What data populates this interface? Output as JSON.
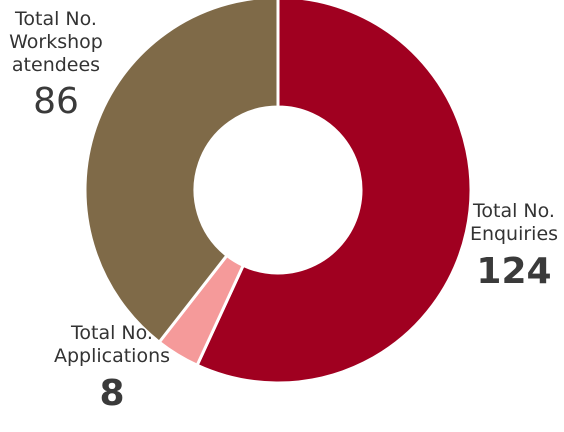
{
  "chart_data": {
    "type": "pie",
    "donut": true,
    "slices": [
      {
        "label": "Total No.\nEnquiries",
        "value": 124,
        "color": "#a00020"
      },
      {
        "label": "Total No.\nApplications",
        "value": 8,
        "color": "#f59a9a"
      },
      {
        "label": "Total No.\nWorkshop\natendees",
        "value": 86,
        "color": "#7f6a48"
      }
    ],
    "start_angle_deg": 0,
    "direction": "clockwise"
  }
}
